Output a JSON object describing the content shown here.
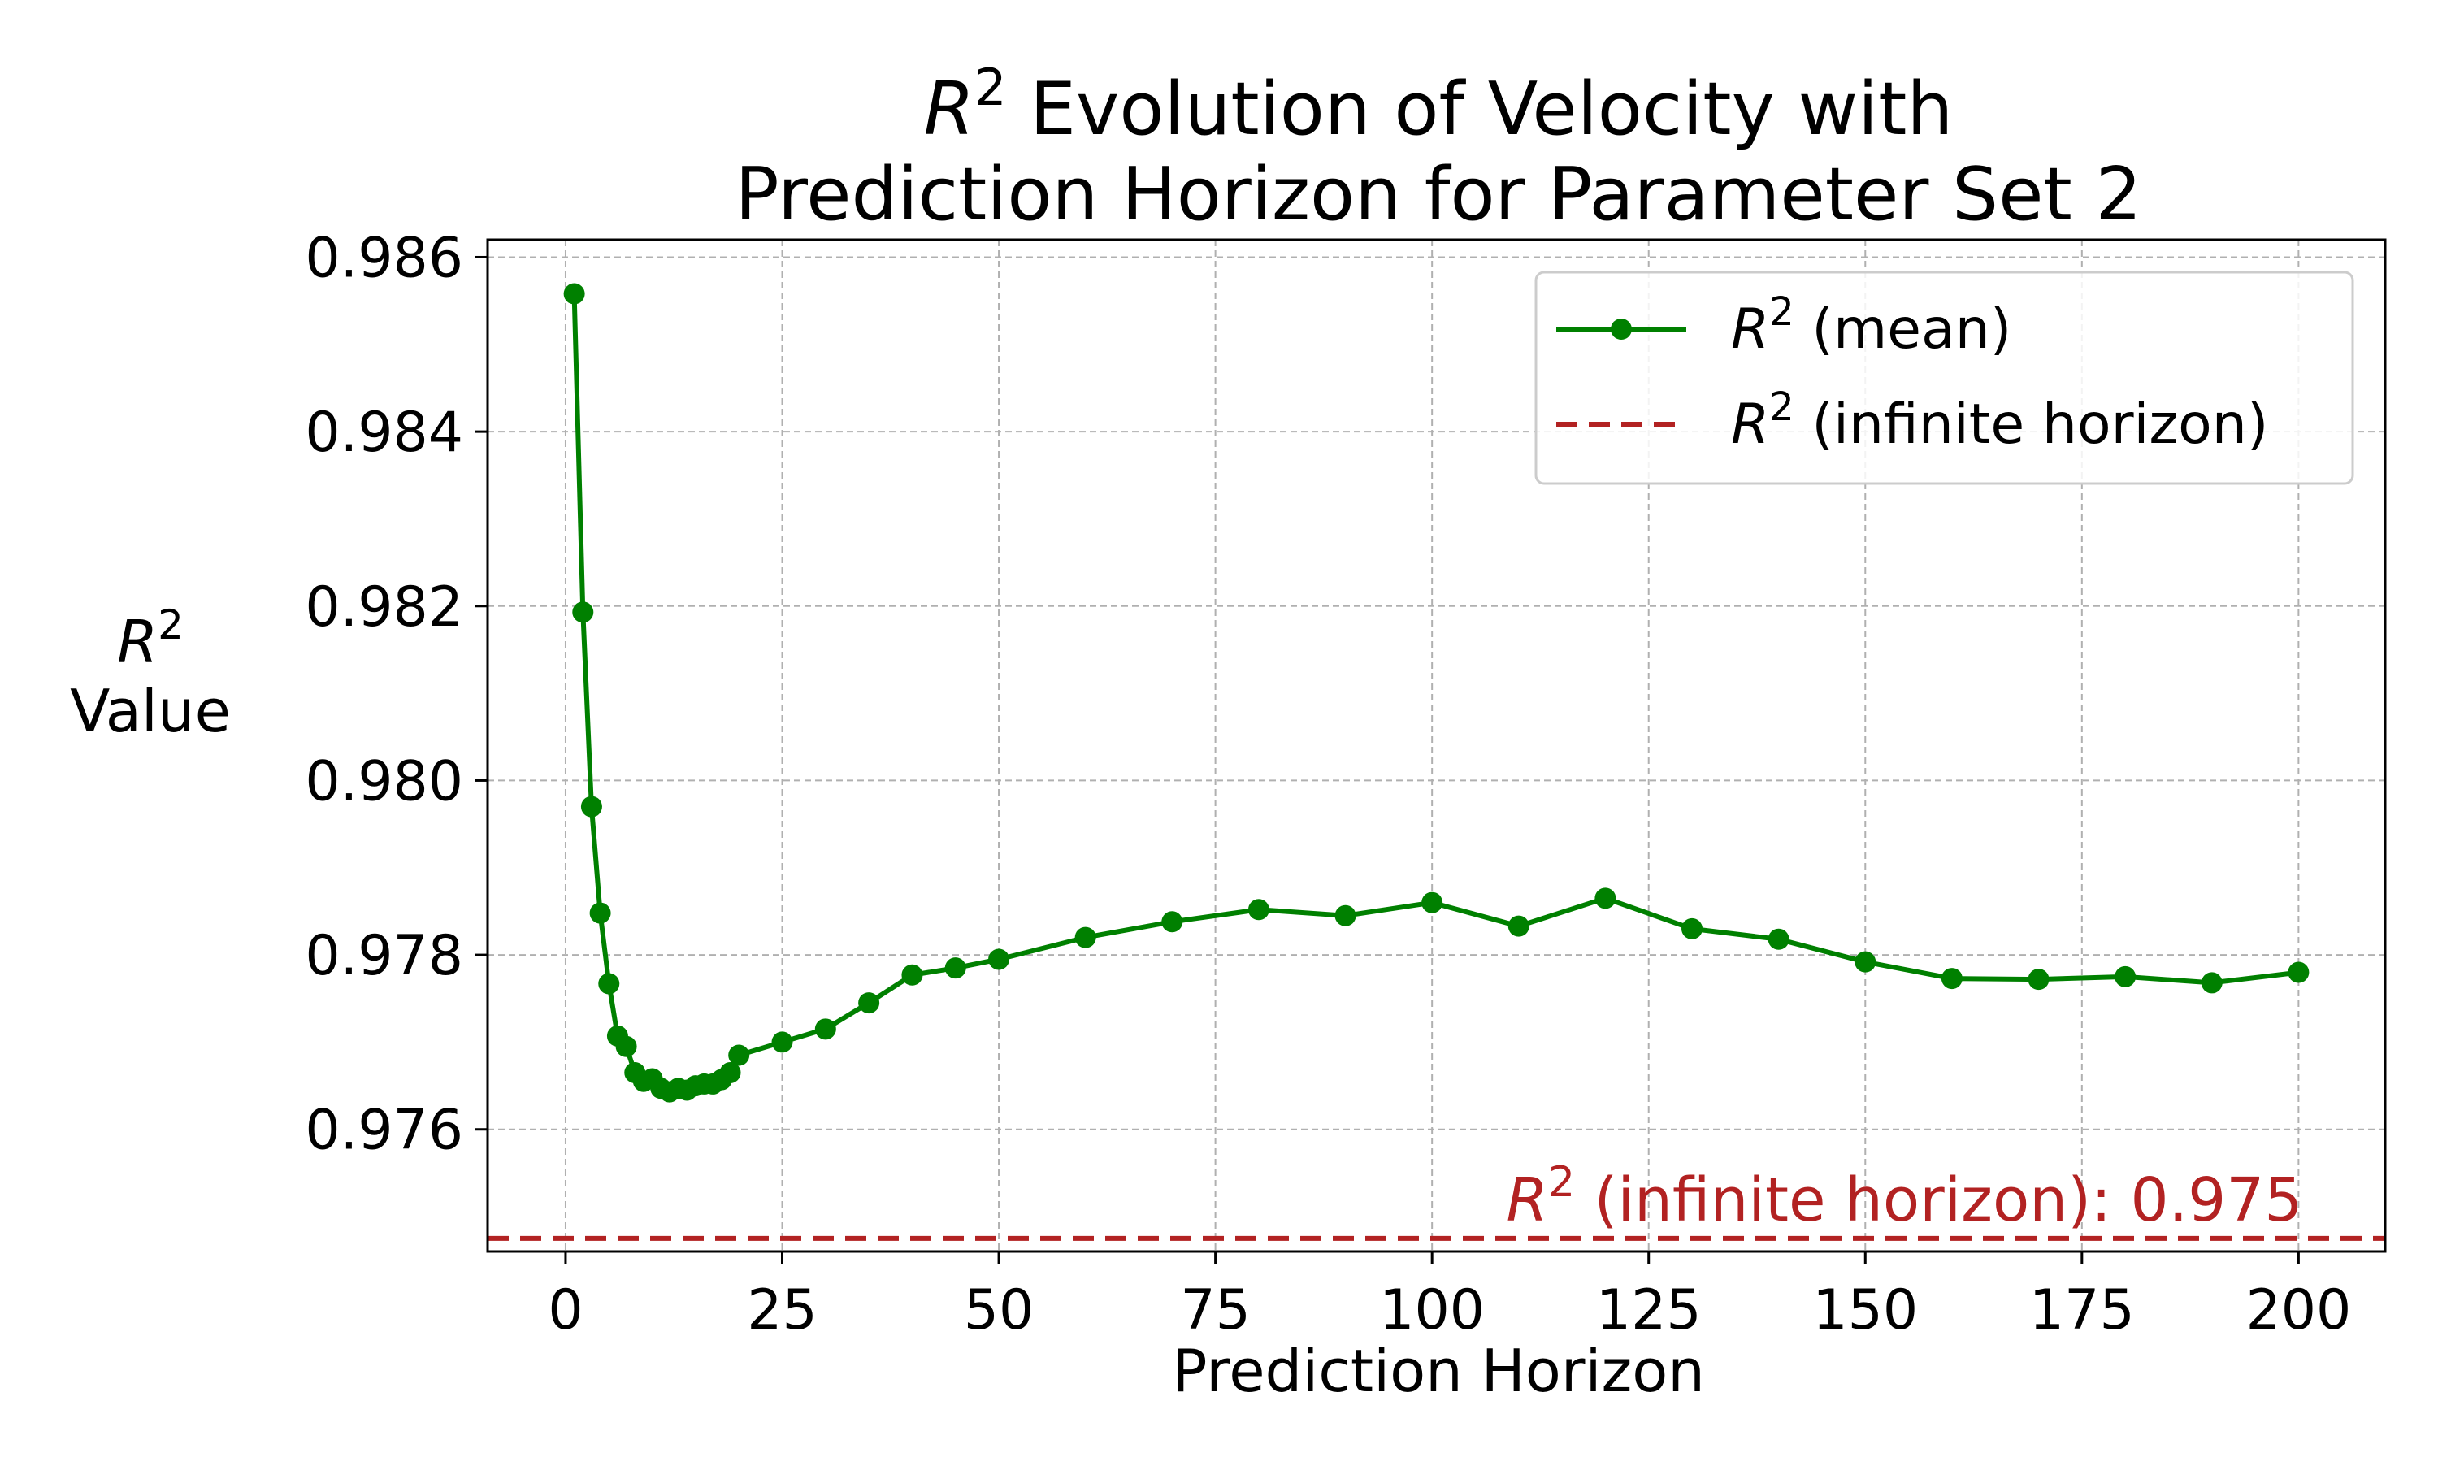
{
  "chart_data": {
    "type": "line",
    "title_line1_rest": " Evolution of Velocity with",
    "title_line2": "Prediction Horizon for Parameter Set 2",
    "r_symbol": "R",
    "r_power": "2",
    "xlabel": "Prediction Horizon",
    "ylabel": "Value",
    "xlim": [
      -9,
      210
    ],
    "ylim": [
      0.9746,
      0.9862
    ],
    "xticks": [
      "0",
      "25",
      "50",
      "75",
      "100",
      "125",
      "150",
      "175",
      "200"
    ],
    "yticks": [
      "0.976",
      "0.978",
      "0.980",
      "0.982",
      "0.984",
      "0.986"
    ],
    "grid": true,
    "legend_position": "top-right",
    "series": [
      {
        "name": " (mean)",
        "color": "#008000",
        "marker": "circle",
        "x": [
          1,
          2,
          3,
          4,
          5,
          6,
          7,
          8,
          9,
          10,
          11,
          12,
          13,
          14,
          15,
          16,
          17,
          18,
          19,
          20,
          25,
          30,
          35,
          40,
          45,
          50,
          60,
          70,
          80,
          90,
          100,
          110,
          120,
          130,
          140,
          150,
          160,
          170,
          180,
          190,
          200
        ],
        "y": [
          0.98558,
          0.98193,
          0.9797,
          0.97848,
          0.97767,
          0.97707,
          0.97695,
          0.97665,
          0.97655,
          0.97658,
          0.97647,
          0.97643,
          0.97647,
          0.97645,
          0.9765,
          0.97652,
          0.97652,
          0.97657,
          0.97665,
          0.97685,
          0.977,
          0.97715,
          0.97745,
          0.97777,
          0.97785,
          0.97795,
          0.9782,
          0.97838,
          0.97852,
          0.97845,
          0.9786,
          0.97833,
          0.97865,
          0.9783,
          0.97818,
          0.97792,
          0.97773,
          0.97772,
          0.97775,
          0.97768,
          0.9778
        ]
      },
      {
        "name": " (infinite horizon)",
        "color": "#b22222",
        "style": "dashed",
        "value": 0.97475
      }
    ],
    "annotation": {
      "text_rest": " (infinite horizon): 0.975",
      "color": "#b22222"
    }
  }
}
